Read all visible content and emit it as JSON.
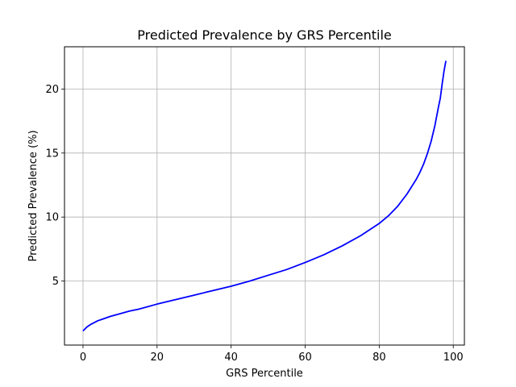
{
  "chart_data": {
    "type": "line",
    "title": "Predicted Prevalence by GRS Percentile",
    "xlabel": "GRS Percentile",
    "ylabel": "Predicted Prevalence (%)",
    "xlim": [
      -5,
      103
    ],
    "ylim": [
      0,
      23.3
    ],
    "xticks": [
      0,
      20,
      40,
      60,
      80,
      100
    ],
    "yticks": [
      5,
      10,
      15,
      20
    ],
    "grid": true,
    "series": [
      {
        "color": "#0000ff",
        "x": [
          0,
          1,
          2,
          3,
          4,
          5,
          7.5,
          10,
          12.5,
          15,
          20,
          25,
          30,
          35,
          40,
          45,
          50,
          55,
          60,
          65,
          70,
          75,
          80,
          82.5,
          85,
          87.5,
          90,
          91,
          92,
          93,
          94,
          95,
          96,
          96.5,
          97,
          97.5,
          98
        ],
        "y": [
          1.1,
          1.4,
          1.6,
          1.75,
          1.9,
          2.0,
          2.25,
          2.45,
          2.65,
          2.8,
          3.2,
          3.55,
          3.9,
          4.25,
          4.6,
          5.0,
          5.45,
          5.9,
          6.45,
          7.05,
          7.75,
          8.55,
          9.5,
          10.1,
          10.85,
          11.8,
          12.95,
          13.5,
          14.15,
          14.95,
          15.9,
          17.1,
          18.6,
          19.3,
          20.4,
          21.4,
          22.2
        ]
      }
    ]
  }
}
